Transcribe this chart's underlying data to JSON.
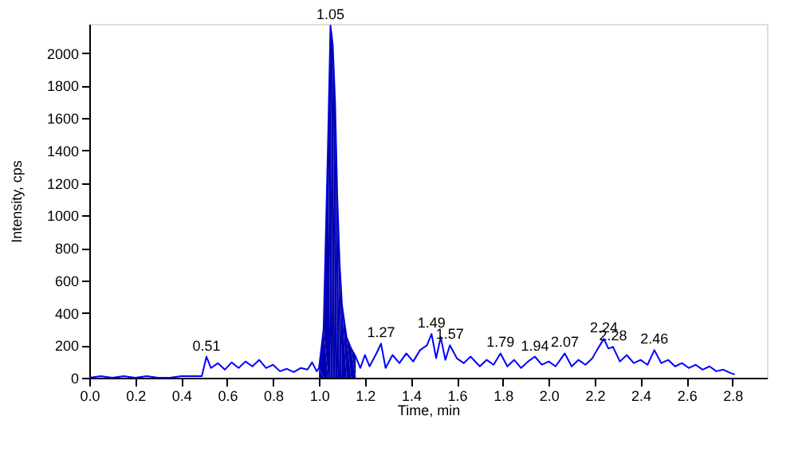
{
  "chart_data": {
    "type": "line",
    "xlabel": "Time, min",
    "ylabel": "Intensity, cps",
    "xlim": [
      0,
      2.95
    ],
    "ylim": [
      0,
      2180
    ],
    "xticks": [
      {
        "value": 0,
        "label": "0.0"
      },
      {
        "value": 0.2,
        "label": "0.2"
      },
      {
        "value": 0.4,
        "label": "0.4"
      },
      {
        "value": 0.6,
        "label": "0.6"
      },
      {
        "value": 0.8,
        "label": "0.8"
      },
      {
        "value": 1.0,
        "label": "1.0"
      },
      {
        "value": 1.2,
        "label": "1.2"
      },
      {
        "value": 1.4,
        "label": "1.4"
      },
      {
        "value": 1.6,
        "label": "1.6"
      },
      {
        "value": 1.8,
        "label": "1.8"
      },
      {
        "value": 2.0,
        "label": "2.0"
      },
      {
        "value": 2.2,
        "label": "2.2"
      },
      {
        "value": 2.4,
        "label": "2.4"
      },
      {
        "value": 2.6,
        "label": "2.6"
      },
      {
        "value": 2.8,
        "label": "2.8"
      }
    ],
    "yticks": [
      0,
      200,
      400,
      600,
      800,
      1000,
      1200,
      1400,
      1600,
      1800,
      2000
    ],
    "grid": false,
    "series": [
      {
        "color": "#0000ff",
        "x": [
          0.0,
          0.05,
          0.1,
          0.15,
          0.2,
          0.25,
          0.3,
          0.35,
          0.4,
          0.45,
          0.49,
          0.51,
          0.53,
          0.56,
          0.59,
          0.62,
          0.65,
          0.68,
          0.71,
          0.74,
          0.77,
          0.8,
          0.83,
          0.86,
          0.89,
          0.92,
          0.95,
          0.97,
          0.99,
          1.0,
          1.02,
          1.04,
          1.05,
          1.06,
          1.07,
          1.08,
          1.09,
          1.1,
          1.12,
          1.14,
          1.16,
          1.18,
          1.2,
          1.22,
          1.25,
          1.27,
          1.29,
          1.32,
          1.35,
          1.38,
          1.41,
          1.44,
          1.47,
          1.49,
          1.51,
          1.53,
          1.55,
          1.57,
          1.6,
          1.63,
          1.66,
          1.7,
          1.73,
          1.76,
          1.79,
          1.82,
          1.85,
          1.88,
          1.91,
          1.94,
          1.97,
          2.0,
          2.03,
          2.05,
          2.07,
          2.1,
          2.13,
          2.16,
          2.19,
          2.21,
          2.24,
          2.26,
          2.28,
          2.31,
          2.34,
          2.37,
          2.4,
          2.43,
          2.46,
          2.49,
          2.52,
          2.55,
          2.58,
          2.61,
          2.64,
          2.67,
          2.7,
          2.73,
          2.76,
          2.79,
          2.81
        ],
        "values": [
          0,
          10,
          0,
          10,
          0,
          10,
          0,
          0,
          10,
          10,
          10,
          130,
          60,
          90,
          50,
          95,
          60,
          100,
          70,
          110,
          60,
          80,
          40,
          55,
          35,
          60,
          50,
          95,
          40,
          60,
          300,
          1500,
          2170,
          2050,
          1700,
          1100,
          700,
          450,
          250,
          180,
          130,
          60,
          140,
          70,
          150,
          210,
          60,
          140,
          90,
          150,
          100,
          170,
          200,
          270,
          120,
          250,
          110,
          200,
          120,
          90,
          130,
          70,
          110,
          80,
          150,
          70,
          110,
          60,
          100,
          130,
          80,
          100,
          70,
          110,
          150,
          70,
          110,
          80,
          120,
          170,
          240,
          180,
          190,
          100,
          140,
          90,
          110,
          80,
          170,
          90,
          110,
          70,
          90,
          60,
          80,
          50,
          70,
          40,
          50,
          30,
          20
        ]
      },
      {
        "type": "area",
        "color": "#0000b0",
        "x": [
          1.0,
          1.02,
          1.04,
          1.05,
          1.06,
          1.07,
          1.08,
          1.09,
          1.1,
          1.12,
          1.14,
          1.16
        ],
        "values": [
          60,
          300,
          1500,
          2170,
          2050,
          1700,
          1100,
          700,
          450,
          250,
          180,
          130
        ]
      }
    ],
    "annotations": [
      {
        "text": "0.51",
        "x": 0.51,
        "y": 130
      },
      {
        "text": "1.05",
        "x": 1.05,
        "y": 2170
      },
      {
        "text": "1.27",
        "x": 1.27,
        "y": 210
      },
      {
        "text": "1.49",
        "x": 1.49,
        "y": 270
      },
      {
        "text": "1.57",
        "x": 1.57,
        "y": 200
      },
      {
        "text": "1.79",
        "x": 1.79,
        "y": 150
      },
      {
        "text": "1.94",
        "x": 1.94,
        "y": 130
      },
      {
        "text": "2.07",
        "x": 2.07,
        "y": 150
      },
      {
        "text": "2.24",
        "x": 2.24,
        "y": 240
      },
      {
        "text": "2.28",
        "x": 2.28,
        "y": 190
      },
      {
        "text": "2.46",
        "x": 2.46,
        "y": 170
      }
    ]
  }
}
